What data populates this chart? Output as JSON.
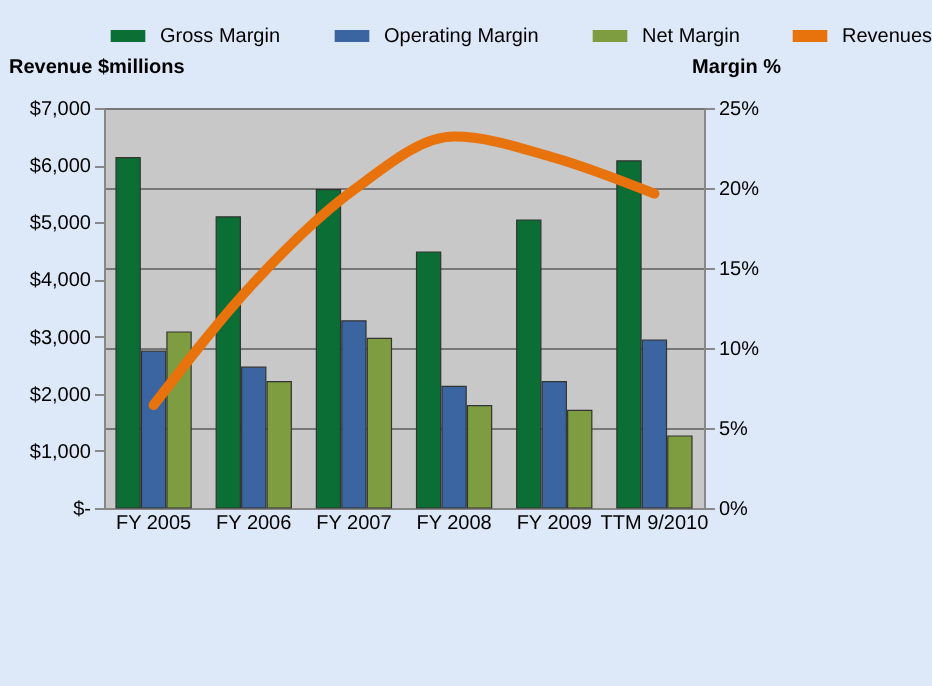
{
  "chart_data": {
    "type": "bar",
    "ylabel": "Revenue $millions",
    "y2label": "Margin %",
    "categories": [
      "FY 2005",
      "FY 2006",
      "FY 2007",
      "FY 2008",
      "FY 2009",
      "TTM 9/2010"
    ],
    "series": [
      {
        "name": "Gross Margin",
        "color": "#0b6e35",
        "axis": "y2",
        "values": [
          21.9,
          18.2,
          19.9,
          16.0,
          18.0,
          21.7
        ]
      },
      {
        "name": "Operating Margin",
        "color": "#3a65a0",
        "axis": "y2",
        "values": [
          9.8,
          8.8,
          11.7,
          7.6,
          7.9,
          10.5
        ]
      },
      {
        "name": "Net Margin",
        "color": "#7e9c40",
        "axis": "y2",
        "values": [
          11.0,
          7.9,
          10.6,
          6.4,
          6.1,
          4.5
        ]
      },
      {
        "name": "Revenues",
        "color": "#e8720c",
        "type": "line",
        "values": [
          1800,
          3940,
          5570,
          6500,
          6130,
          5500
        ]
      }
    ],
    "ylim": [
      0,
      7000
    ],
    "yticks": [
      {
        "value": 0,
        "label": "$-"
      },
      {
        "value": 1000,
        "label": "$1,000"
      },
      {
        "value": 2000,
        "label": "$2,000"
      },
      {
        "value": 3000,
        "label": "$3,000"
      },
      {
        "value": 4000,
        "label": "$4,000"
      },
      {
        "value": 5000,
        "label": "$5,000"
      },
      {
        "value": 6000,
        "label": "$6,000"
      },
      {
        "value": 7000,
        "label": "$7,000"
      }
    ],
    "y2lim": [
      0,
      25
    ],
    "y2ticks": [
      {
        "value": 0,
        "label": "0%"
      },
      {
        "value": 5,
        "label": "5%"
      },
      {
        "value": 10,
        "label": "10%"
      },
      {
        "value": 15,
        "label": "15%"
      },
      {
        "value": 20,
        "label": "20%"
      },
      {
        "value": 25,
        "label": "25%"
      }
    ],
    "grid": "y",
    "legend": "top"
  }
}
